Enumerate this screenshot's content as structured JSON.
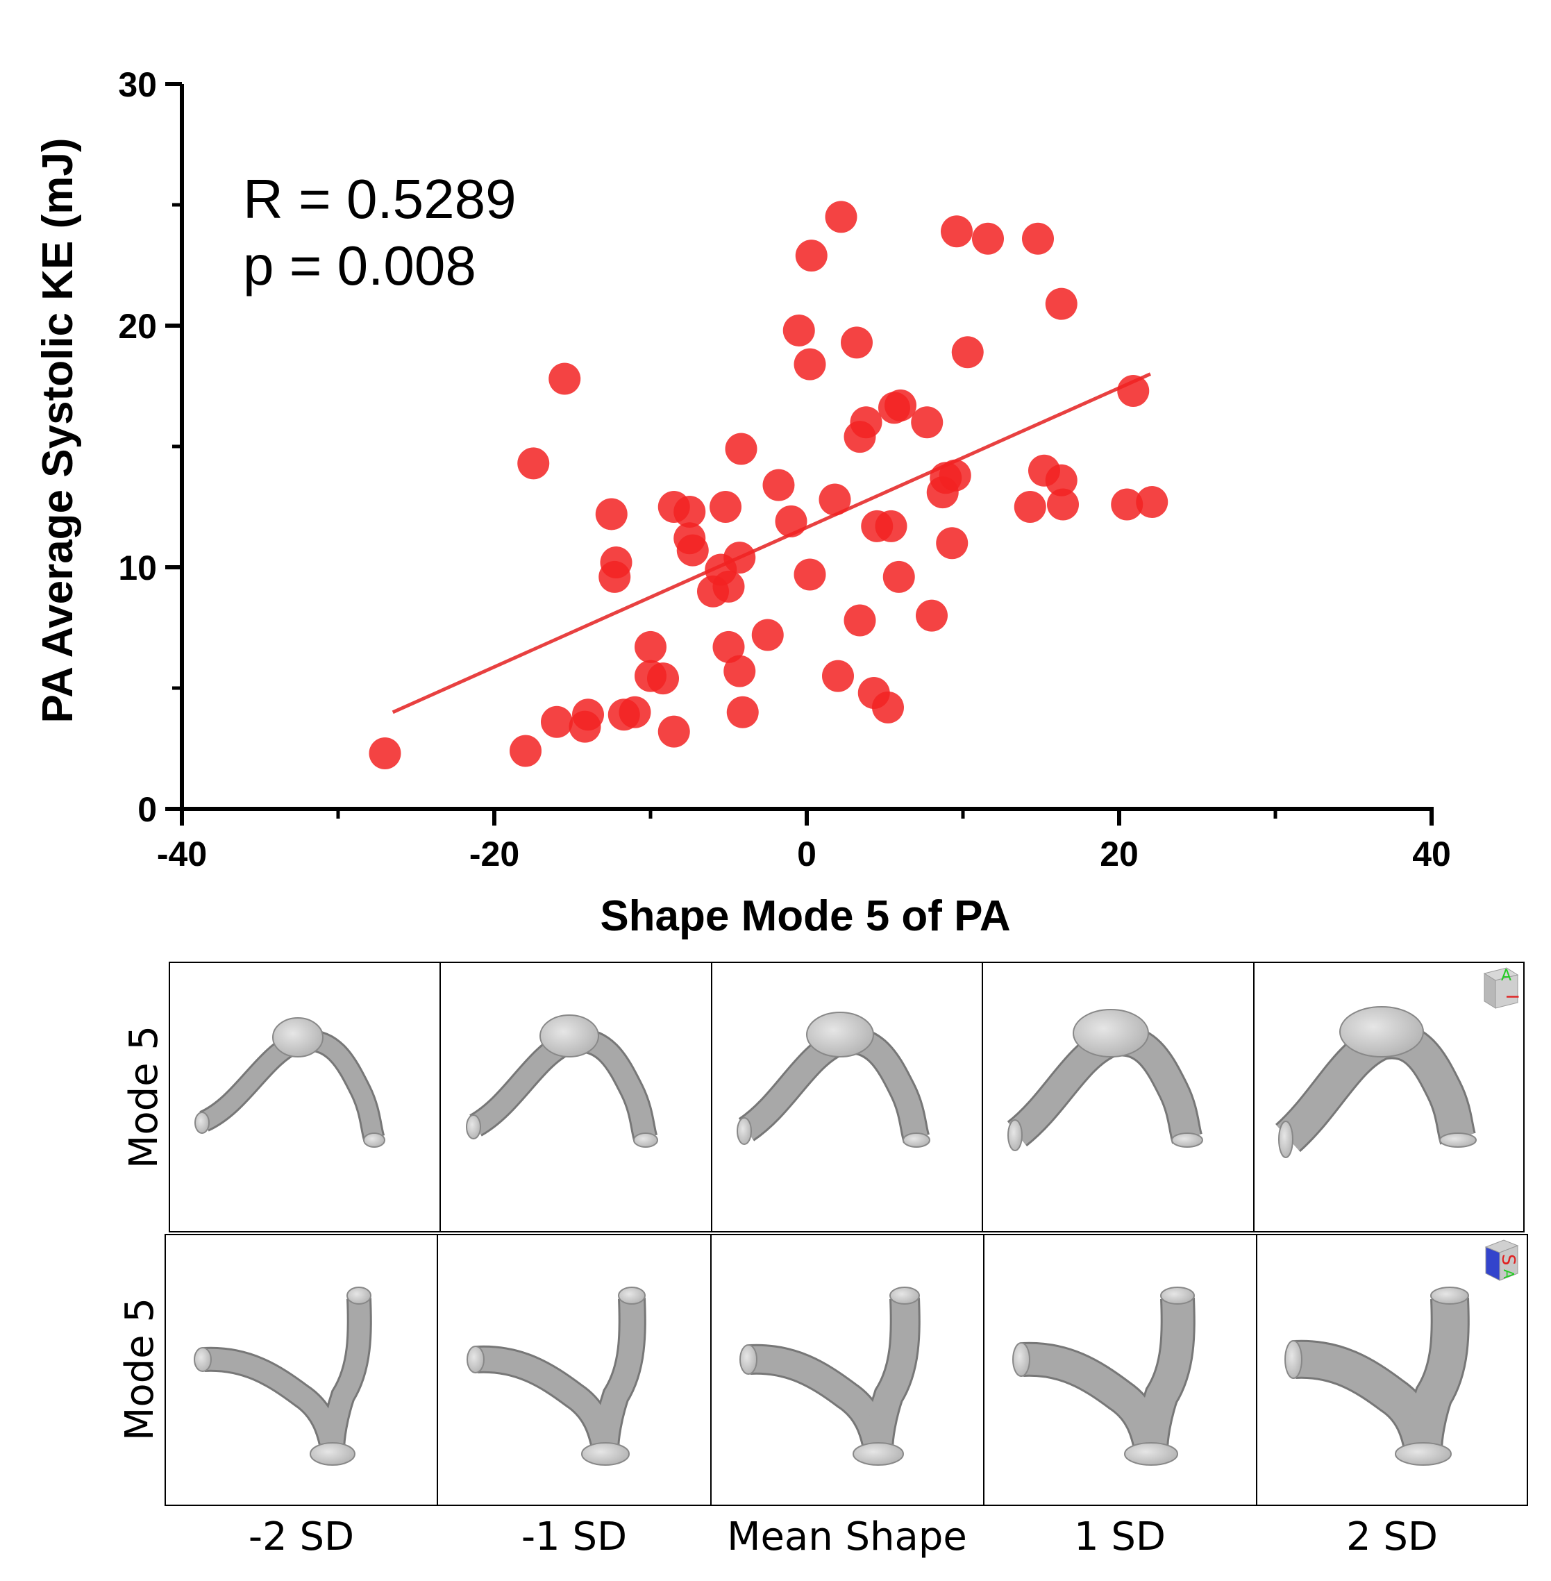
{
  "chart_data": {
    "type": "scatter",
    "xlabel": "Shape Mode 5 of PA",
    "ylabel": "PA Average Systolic KE (mJ)",
    "xlim": [
      -40,
      40
    ],
    "ylim": [
      0,
      30
    ],
    "xticks": [
      "-40",
      "-20",
      "0",
      "20",
      "40"
    ],
    "yticks": [
      "0",
      "10",
      "20",
      "30"
    ],
    "annotations": [
      "R = 0.5289",
      "p = 0.008"
    ],
    "grid": false,
    "point_color": "#f22222",
    "fit_line": {
      "x": [
        -26.5,
        22.0
      ],
      "y": [
        4.0,
        18.0
      ],
      "color": "#e84040"
    },
    "points": [
      {
        "x": -27.0,
        "y": 2.3
      },
      {
        "x": -18.0,
        "y": 2.4
      },
      {
        "x": -17.5,
        "y": 14.3
      },
      {
        "x": -16.0,
        "y": 3.6
      },
      {
        "x": -15.5,
        "y": 17.8
      },
      {
        "x": -14.2,
        "y": 3.4
      },
      {
        "x": -14.0,
        "y": 3.9
      },
      {
        "x": -12.5,
        "y": 12.2
      },
      {
        "x": -12.3,
        "y": 9.6
      },
      {
        "x": -12.2,
        "y": 10.2
      },
      {
        "x": -11.7,
        "y": 3.9
      },
      {
        "x": -11.0,
        "y": 4.0
      },
      {
        "x": -10.0,
        "y": 6.7
      },
      {
        "x": -10.0,
        "y": 5.5
      },
      {
        "x": -9.2,
        "y": 5.4
      },
      {
        "x": -8.5,
        "y": 3.2
      },
      {
        "x": -8.5,
        "y": 12.5
      },
      {
        "x": -7.5,
        "y": 12.3
      },
      {
        "x": -7.5,
        "y": 11.2
      },
      {
        "x": -7.3,
        "y": 10.7
      },
      {
        "x": -6.0,
        "y": 9.0
      },
      {
        "x": -5.5,
        "y": 9.9
      },
      {
        "x": -5.2,
        "y": 12.5
      },
      {
        "x": -5.0,
        "y": 6.7
      },
      {
        "x": -5.0,
        "y": 9.2
      },
      {
        "x": -4.3,
        "y": 10.4
      },
      {
        "x": -4.3,
        "y": 5.7
      },
      {
        "x": -4.2,
        "y": 14.9
      },
      {
        "x": -4.1,
        "y": 4.0
      },
      {
        "x": -2.5,
        "y": 7.2
      },
      {
        "x": -1.8,
        "y": 13.4
      },
      {
        "x": -1.0,
        "y": 11.9
      },
      {
        "x": -0.5,
        "y": 19.8
      },
      {
        "x": 0.2,
        "y": 9.7
      },
      {
        "x": 0.2,
        "y": 18.4
      },
      {
        "x": 0.3,
        "y": 22.9
      },
      {
        "x": 1.8,
        "y": 12.8
      },
      {
        "x": 2.0,
        "y": 5.5
      },
      {
        "x": 2.2,
        "y": 24.5
      },
      {
        "x": 3.2,
        "y": 19.3
      },
      {
        "x": 3.4,
        "y": 7.8
      },
      {
        "x": 3.4,
        "y": 15.4
      },
      {
        "x": 3.8,
        "y": 16.0
      },
      {
        "x": 4.3,
        "y": 4.8
      },
      {
        "x": 4.5,
        "y": 11.7
      },
      {
        "x": 5.2,
        "y": 4.2
      },
      {
        "x": 5.4,
        "y": 11.7
      },
      {
        "x": 5.6,
        "y": 16.6
      },
      {
        "x": 5.9,
        "y": 9.6
      },
      {
        "x": 6.0,
        "y": 16.7
      },
      {
        "x": 7.7,
        "y": 16.0
      },
      {
        "x": 8.0,
        "y": 8.0
      },
      {
        "x": 8.7,
        "y": 13.1
      },
      {
        "x": 8.9,
        "y": 13.7
      },
      {
        "x": 9.3,
        "y": 11.0
      },
      {
        "x": 9.5,
        "y": 13.8
      },
      {
        "x": 9.6,
        "y": 23.9
      },
      {
        "x": 10.3,
        "y": 18.9
      },
      {
        "x": 11.6,
        "y": 23.6
      },
      {
        "x": 14.3,
        "y": 12.5
      },
      {
        "x": 14.8,
        "y": 23.6
      },
      {
        "x": 15.2,
        "y": 14.0
      },
      {
        "x": 16.3,
        "y": 13.6
      },
      {
        "x": 16.3,
        "y": 20.9
      },
      {
        "x": 16.4,
        "y": 12.6
      },
      {
        "x": 20.5,
        "y": 12.6
      },
      {
        "x": 20.9,
        "y": 17.3
      },
      {
        "x": 22.1,
        "y": 12.7
      }
    ]
  },
  "shape_panels": {
    "row_labels": [
      "Mode 5",
      "Mode 5"
    ],
    "column_labels": [
      "-2 SD",
      "-1 SD",
      "Mean Shape",
      "1 SD",
      "2 SD"
    ],
    "orientation_cube_top": {
      "faces": [
        "A",
        "I"
      ]
    },
    "orientation_cube_bottom": {
      "faces": [
        "S",
        "A"
      ]
    },
    "model_color": "#a8a8a8"
  }
}
